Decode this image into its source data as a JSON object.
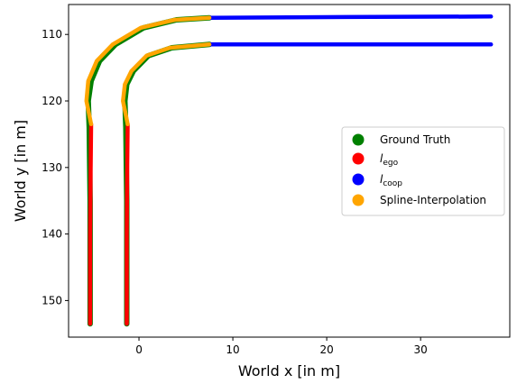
{
  "chart_data": {
    "type": "scatter",
    "xlabel": "World x [in m]",
    "ylabel": "World y [in m]",
    "xlim": [
      -7.5,
      39.5
    ],
    "ylim": [
      155.5,
      105.5
    ],
    "y_inverted": true,
    "xticks": [
      0,
      10,
      20,
      30
    ],
    "yticks": [
      110,
      120,
      130,
      140,
      150
    ],
    "grid": false,
    "legend_position": "center-right",
    "series": [
      {
        "name": "Ground Truth",
        "color": "#008000",
        "curves": [
          [
            [
              -5.2,
              153.5
            ],
            [
              -5.2,
              135
            ],
            [
              -5.3,
              124
            ],
            [
              -5.4,
              120
            ],
            [
              -5.1,
              117
            ],
            [
              -4.2,
              114
            ],
            [
              -2.5,
              111.5
            ],
            [
              0.5,
              109
            ],
            [
              4,
              107.8
            ],
            [
              7.5,
              107.5
            ]
          ],
          [
            [
              -1.3,
              153.5
            ],
            [
              -1.3,
              135
            ],
            [
              -1.4,
              124
            ],
            [
              -1.5,
              120
            ],
            [
              -1.3,
              117.5
            ],
            [
              -0.6,
              115.5
            ],
            [
              1.0,
              113.2
            ],
            [
              3.5,
              112.0
            ],
            [
              7.5,
              111.5
            ]
          ]
        ]
      },
      {
        "name": "l_ego",
        "label_main": "l",
        "label_sub": "ego",
        "color": "#ff0000",
        "curves": [
          [
            [
              -5.2,
              153.5
            ],
            [
              -5.2,
              140
            ],
            [
              -5.15,
              130
            ],
            [
              -5.1,
              123.5
            ]
          ],
          [
            [
              -1.3,
              153.5
            ],
            [
              -1.3,
              140
            ],
            [
              -1.25,
              130
            ],
            [
              -1.2,
              123.5
            ]
          ]
        ]
      },
      {
        "name": "l_coop",
        "label_main": "l",
        "label_sub": "coop",
        "color": "#0000ff",
        "curves": [
          [
            [
              7.5,
              107.5
            ],
            [
              20,
              107.4
            ],
            [
              37.5,
              107.3
            ]
          ],
          [
            [
              7.5,
              111.5
            ],
            [
              20,
              111.5
            ],
            [
              37.5,
              111.5
            ]
          ]
        ]
      },
      {
        "name": "Spline-Interpolation",
        "color": "#ffa500",
        "curves": [
          [
            [
              -5.1,
              123.5
            ],
            [
              -5.6,
              120
            ],
            [
              -5.4,
              117
            ],
            [
              -4.5,
              114
            ],
            [
              -2.8,
              111.5
            ],
            [
              0.2,
              109
            ],
            [
              3.8,
              107.8
            ],
            [
              7.5,
              107.5
            ]
          ],
          [
            [
              -1.2,
              123.5
            ],
            [
              -1.7,
              120
            ],
            [
              -1.5,
              117.5
            ],
            [
              -0.8,
              115.5
            ],
            [
              0.8,
              113.2
            ],
            [
              3.3,
              112.0
            ],
            [
              7.5,
              111.5
            ]
          ]
        ]
      }
    ]
  },
  "legend": {
    "items": [
      {
        "key": "gt",
        "main": "Ground Truth",
        "sub": "",
        "color": "#008000"
      },
      {
        "key": "ego",
        "main": "l",
        "sub": "ego",
        "color": "#ff0000"
      },
      {
        "key": "coop",
        "main": "l",
        "sub": "coop",
        "color": "#0000ff"
      },
      {
        "key": "spline",
        "main": "Spline-Interpolation",
        "sub": "",
        "color": "#ffa500"
      }
    ]
  }
}
